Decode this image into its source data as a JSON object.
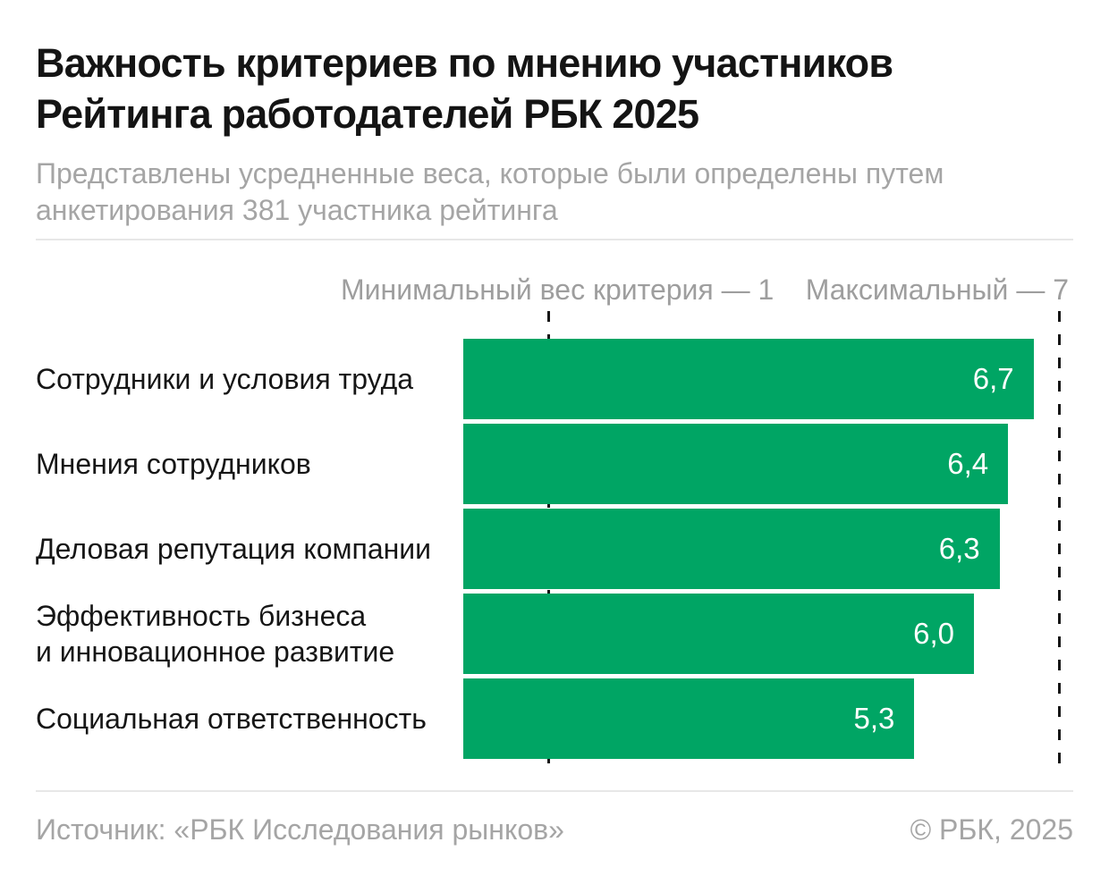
{
  "header": {
    "title": "Важность критериев по мнению участников\nРейтинга работодателей РБК 2025",
    "subtitle": "Представлены усредненные веса, которые были определены путем\nанкетирования 381 участника рейтинга"
  },
  "chart_data": {
    "type": "bar",
    "orientation": "horizontal",
    "title": "Важность критериев по мнению участников Рейтинга работодателей РБК 2025",
    "xlabel": "",
    "ylabel": "",
    "xlim": [
      0,
      7.17
    ],
    "grid": "off",
    "reference_lines": "dashed vertical lines at values 1 and 7",
    "categories": [
      "Сотрудники и условия труда",
      "Мнения сотрудников",
      "Деловая репутация компании",
      "Эффективность бизнеса\nи инновационное развитие",
      "Социальная ответственность"
    ],
    "values": [
      6.7,
      6.4,
      6.3,
      6.0,
      5.3
    ],
    "value_labels": [
      "6,7",
      "6,4",
      "6,3",
      "6,0",
      "5,3"
    ],
    "annotations": {
      "min_label": "Минимальный вес критерия — 1",
      "max_label": "Максимальный — 7",
      "min_value": 1,
      "max_value": 7
    },
    "bar_color": "#00A564",
    "value_label_color": "#ffffff",
    "guide_color": "#161616"
  },
  "footer": {
    "source": "Источник: «РБК Исследования рынков»",
    "copyright": "© РБК, 2025"
  }
}
